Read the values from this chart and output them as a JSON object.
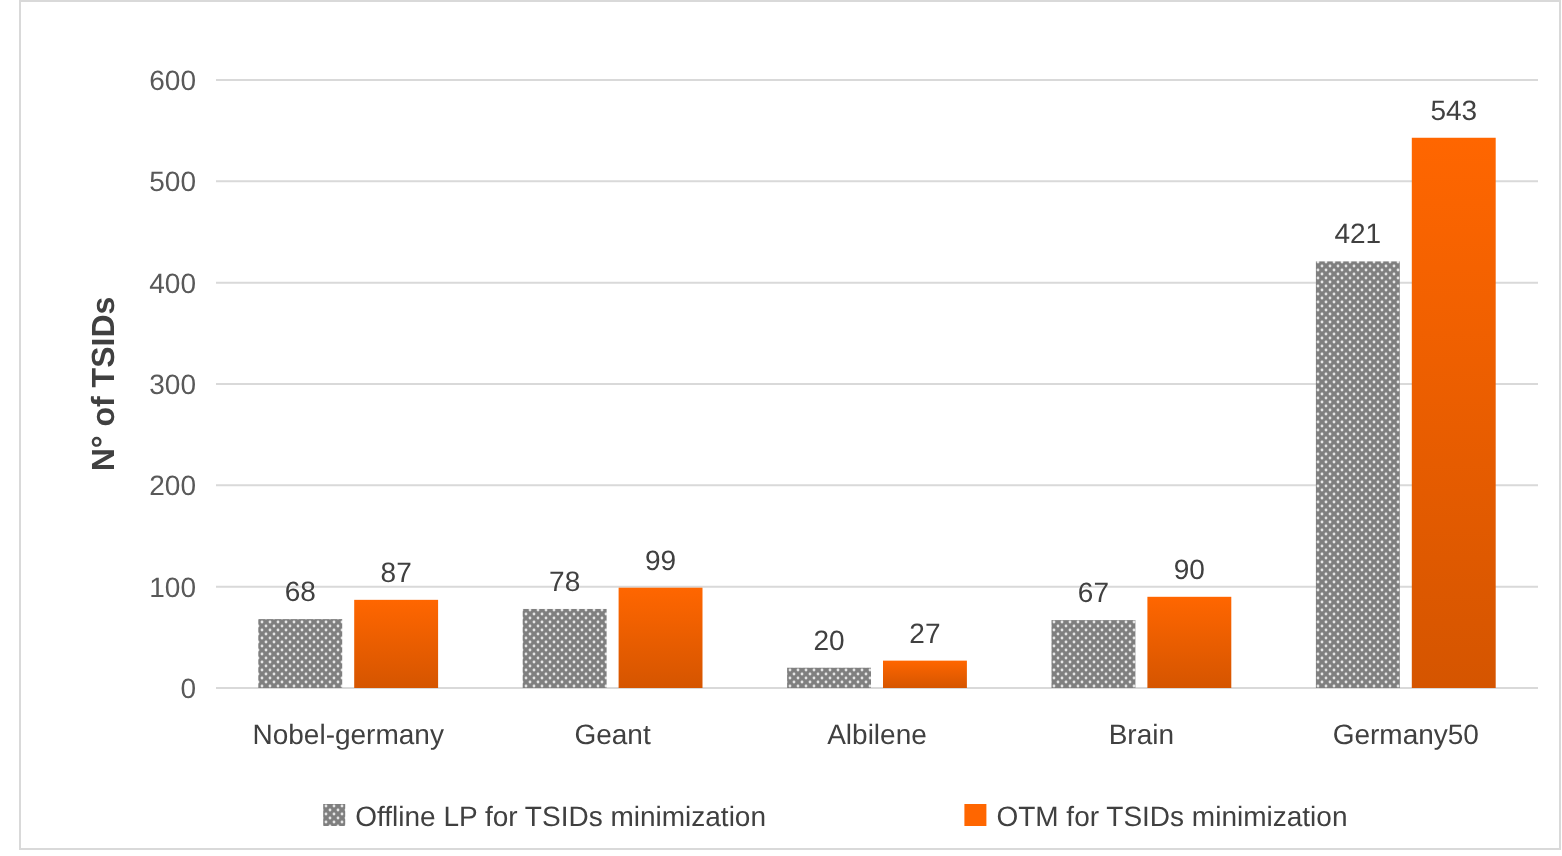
{
  "chart_data": {
    "type": "bar",
    "ylabel": "N° of TSIDs",
    "categories": [
      "Nobel-germany",
      "Geant",
      "Albilene",
      "Brain",
      "Germany50"
    ],
    "series": [
      {
        "name": "Offline LP for TSIDs minimization",
        "color": "#7f7f7f",
        "values": [
          68,
          78,
          20,
          67,
          421
        ]
      },
      {
        "name": "OTM for TSIDs minimization",
        "color": "#ff6600",
        "values": [
          87,
          99,
          27,
          90,
          543
        ]
      }
    ],
    "ylim": [
      0,
      600
    ],
    "yticks": [
      0,
      100,
      200,
      300,
      400,
      500,
      600
    ],
    "grid": "y",
    "legend": "bottom",
    "data_labels": true
  }
}
